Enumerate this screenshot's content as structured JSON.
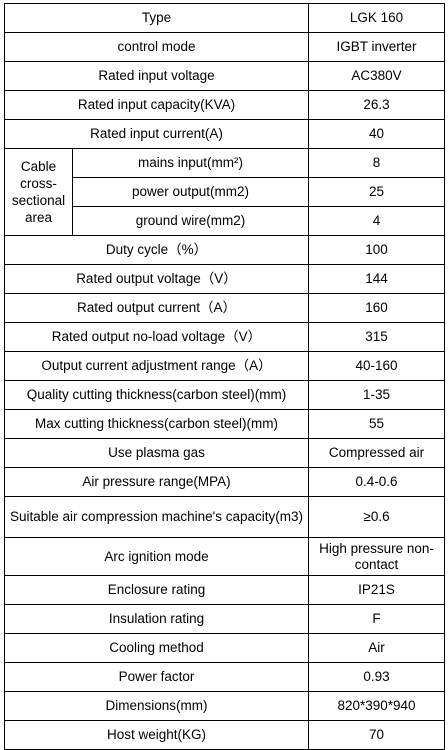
{
  "table": {
    "rows": [
      [
        "Type",
        "LGK 160"
      ],
      [
        "control mode",
        "IGBT inverter"
      ],
      [
        "Rated input voltage",
        "AC380V"
      ],
      [
        "Rated input capacity(KVA)",
        "26.3"
      ],
      [
        "Rated input current(A)",
        "40"
      ],
      {
        "group": "Cable cross-sectional area",
        "items": [
          [
            "mains input(mm²)",
            "8"
          ],
          [
            "power output(mm2)",
            "25"
          ],
          [
            "ground wire(mm2)",
            "4"
          ]
        ]
      },
      [
        "Duty cycle（%）",
        "100"
      ],
      [
        "Rated output voltage（V）",
        "144"
      ],
      [
        "Rated output current（A）",
        "160"
      ],
      [
        "Rated output no-load voltage（V）",
        "315"
      ],
      [
        "Output current adjustment range（A）",
        "40-160"
      ],
      [
        "Quality cutting thickness(carbon steel)(mm)",
        "1-35"
      ],
      [
        "Max cutting thickness(carbon steel)(mm)",
        "55"
      ],
      [
        "Use plasma gas",
        "Compressed air"
      ],
      [
        "Air pressure range(MPA)",
        "0.4-0.6"
      ],
      [
        "Suitable air compression machine's capacity(m3)",
        "≥0.6"
      ],
      [
        "Arc ignition mode",
        "High pressure non-contact"
      ],
      [
        "Enclosure rating",
        "IP21S"
      ],
      [
        "Insulation rating",
        "F"
      ],
      [
        "Cooling method",
        "Air"
      ],
      [
        "Power factor",
        "0.93"
      ],
      [
        "Dimensions(mm)",
        "820*390*940"
      ],
      [
        "Host weight(KG)",
        "70"
      ]
    ]
  }
}
